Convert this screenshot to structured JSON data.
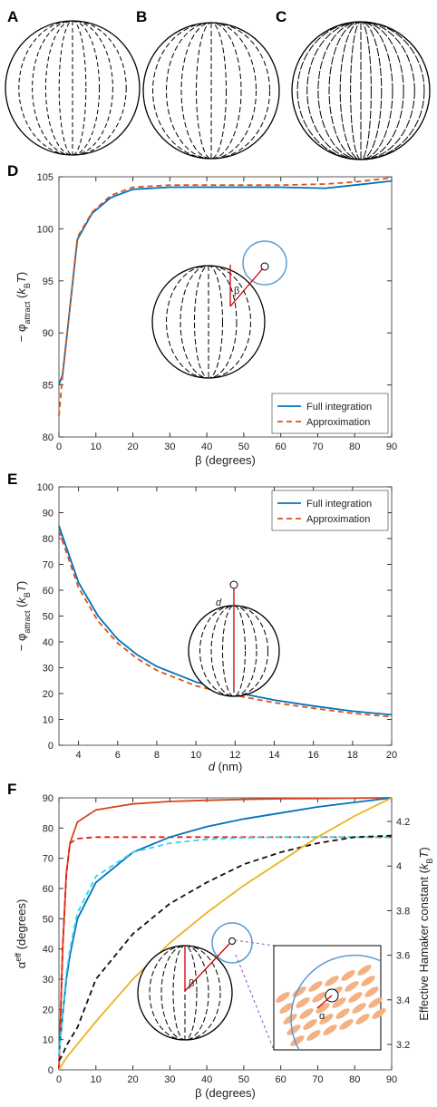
{
  "panel_labels": [
    "A",
    "B",
    "C",
    "D",
    "E",
    "F"
  ],
  "chart_data": [
    {
      "type": "line",
      "xlabel": [
        "β (degrees)"
      ],
      "ylabel": [
        "− φ",
        "attract",
        " (",
        "k",
        "B",
        "T",
        ")"
      ],
      "x": [
        0,
        1,
        5,
        9,
        14,
        20,
        30,
        40,
        50,
        60,
        72,
        80,
        90
      ],
      "xlim": [
        0,
        90
      ],
      "xticks": [
        0,
        10,
        20,
        30,
        40,
        50,
        60,
        70,
        80,
        90
      ],
      "ylim": [
        80,
        105
      ],
      "yticks": [
        80,
        85,
        90,
        95,
        100,
        105
      ],
      "legend": "lower right",
      "annotations": [
        "β"
      ],
      "series": [
        {
          "name": "Full integration",
          "color": "#0072bd",
          "style": "solid",
          "values": [
            85,
            86,
            99,
            101.5,
            103,
            103.8,
            104,
            104,
            104,
            104,
            103.9,
            104.2,
            104.6
          ]
        },
        {
          "name": "Approximation",
          "color": "#d95319",
          "style": "dashed",
          "values": [
            82,
            86,
            99.2,
            101.6,
            103.2,
            104,
            104.2,
            104.2,
            104.2,
            104.2,
            104.3,
            104.5,
            104.9
          ]
        }
      ]
    },
    {
      "type": "line",
      "xlabel": [
        "d",
        " (nm)"
      ],
      "ylabel": [
        "− φ",
        "attract",
        " (",
        "k",
        "B",
        "T",
        ")"
      ],
      "x": [
        3,
        4,
        5,
        6,
        7,
        8,
        10,
        12,
        14,
        16,
        18,
        20
      ],
      "xlim": [
        3,
        20
      ],
      "xticks": [
        4,
        6,
        8,
        10,
        12,
        14,
        16,
        18,
        20
      ],
      "ylim": [
        0,
        100
      ],
      "yticks": [
        0,
        10,
        20,
        30,
        40,
        50,
        60,
        70,
        80,
        90,
        100
      ],
      "legend": "upper right",
      "annotations": [
        "d"
      ],
      "series": [
        {
          "name": "Full integration",
          "color": "#0072bd",
          "style": "solid",
          "values": [
            85,
            63,
            50,
            41,
            35,
            30.5,
            24.5,
            20.5,
            17.5,
            15.2,
            13.2,
            11.8
          ]
        },
        {
          "name": "Approximation",
          "color": "#d95319",
          "style": "dashed",
          "values": [
            83,
            61,
            48,
            39.5,
            33.5,
            29,
            23,
            19.3,
            16.5,
            14.3,
            12.4,
            11
          ]
        }
      ]
    },
    {
      "type": "line",
      "xlabel": [
        "β (degrees)"
      ],
      "ylabel": [
        "α",
        "eff",
        " (degrees)"
      ],
      "y2label": [
        "Effective Hamaker constant (",
        "k",
        "B",
        "T",
        ")"
      ],
      "x": [
        0,
        1,
        2,
        3,
        5,
        10,
        20,
        30,
        40,
        50,
        60,
        70,
        80,
        90
      ],
      "xlim": [
        0,
        90
      ],
      "xticks": [
        0,
        10,
        20,
        30,
        40,
        50,
        60,
        70,
        80,
        90
      ],
      "ylim": [
        0,
        90
      ],
      "yticks": [
        0,
        10,
        20,
        30,
        40,
        50,
        60,
        70,
        80,
        90
      ],
      "y2lim": [
        3.086,
        4.306
      ],
      "y2ticks": [
        3.2,
        3.4,
        3.6,
        3.8,
        4,
        4.2
      ],
      "annotations": [
        "β",
        "α"
      ],
      "series": [
        {
          "color": "#d9441c",
          "style": "solid",
          "values": [
            0,
            40,
            65,
            75,
            82,
            86,
            88,
            88.8,
            89.2,
            89.5,
            89.7,
            89.8,
            89.9,
            90
          ]
        },
        {
          "color": "#e0201b",
          "style": "dashed",
          "values": [
            0,
            40,
            65,
            75,
            76.5,
            77,
            77,
            77,
            77,
            77,
            77,
            77,
            77,
            77
          ]
        },
        {
          "color": "#0072bd",
          "style": "solid",
          "values": [
            5,
            18,
            30,
            38,
            50,
            62,
            72,
            77,
            80.5,
            83,
            85,
            87,
            88.5,
            90
          ]
        },
        {
          "color": "#33d6e8",
          "style": "dashed",
          "values": [
            5,
            18,
            32,
            40,
            52,
            64,
            72,
            75,
            76.3,
            76.8,
            77,
            77,
            77,
            77
          ]
        },
        {
          "color": "#111111",
          "style": "dashed",
          "values": [
            3,
            5,
            8,
            10,
            14,
            30,
            45,
            55,
            62,
            68,
            72,
            75,
            77,
            77.5
          ]
        },
        {
          "color": "#edb120",
          "style": "solid",
          "values": [
            0,
            2,
            4,
            5.5,
            8.5,
            16,
            30,
            42,
            52,
            61,
            69,
            77,
            84,
            90
          ]
        }
      ]
    }
  ]
}
